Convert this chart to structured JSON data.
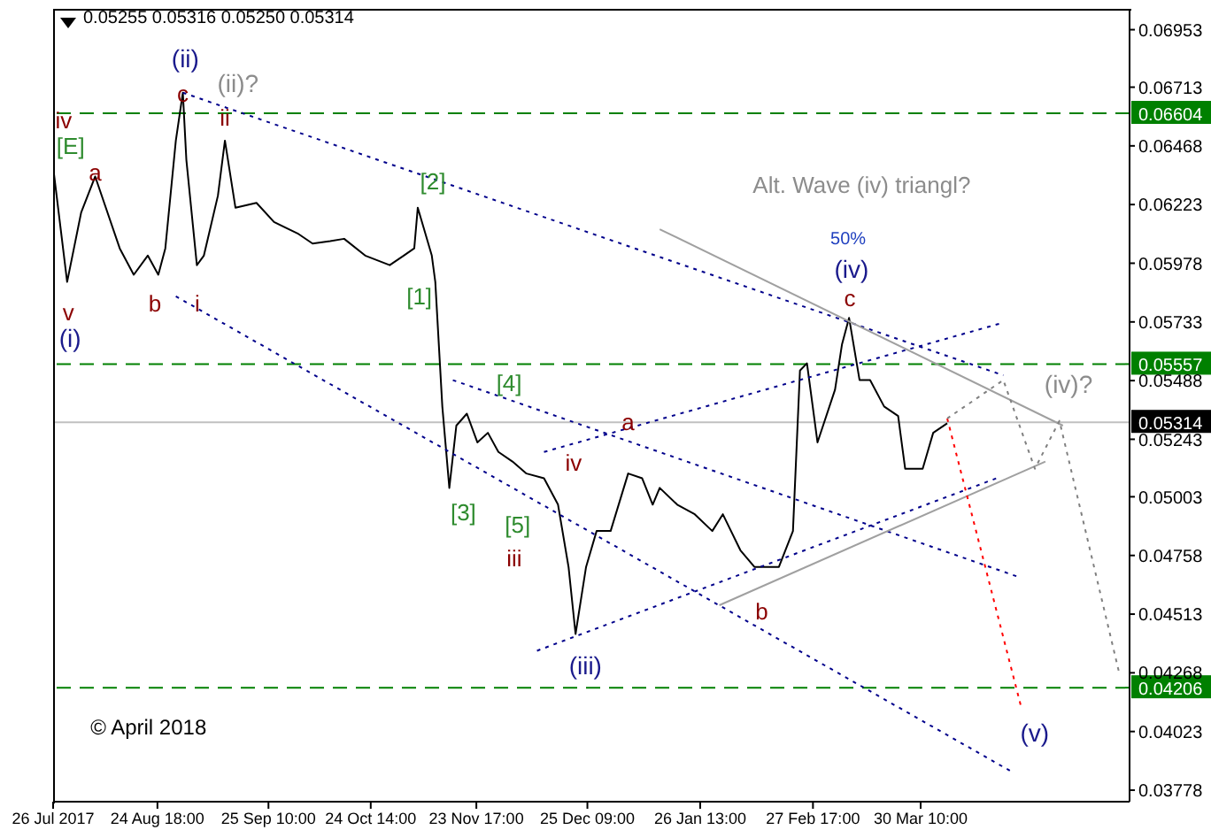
{
  "chart_data": {
    "type": "line",
    "title": "0.05255 0.05316 0.05250 0.05314",
    "marker": "none",
    "line_style": "solid",
    "xlim": [
      "2017-07-26",
      "2018-05-29"
    ],
    "ylim": [
      0.0373,
      0.0704
    ],
    "xticks": [
      {
        "value": "2017-07-26",
        "label": "26 Jul 2017"
      },
      {
        "value": "2017-08-24T18:00",
        "label": "24 Aug 18:00"
      },
      {
        "value": "2017-09-25T10:00",
        "label": "25 Sep 10:00"
      },
      {
        "value": "2017-10-24T14:00",
        "label": "24 Oct 14:00"
      },
      {
        "value": "2017-11-23T17:00",
        "label": "23 Nov 17:00"
      },
      {
        "value": "2017-12-25T09:00",
        "label": "25 Dec 09:00"
      },
      {
        "value": "2018-01-26T13:00",
        "label": "26 Jan 13:00"
      },
      {
        "value": "2018-02-27T17:00",
        "label": "27 Feb 17:00"
      },
      {
        "value": "2018-03-30T10:00",
        "label": "30 Mar 10:00"
      }
    ],
    "yticks": [
      0.06953,
      0.06713,
      0.06468,
      0.06223,
      0.05978,
      0.05733,
      0.05488,
      0.05243,
      0.05003,
      0.04758,
      0.04513,
      0.04268,
      0.04023,
      0.03778
    ],
    "series": [
      {
        "color": "#000000",
        "x": [
          "2017-07-26",
          "2017-07-30",
          "2017-08-03",
          "2017-08-07",
          "2017-08-14",
          "2017-08-18",
          "2017-08-22",
          "2017-08-25",
          "2017-08-27",
          "2017-08-30",
          "2017-09-01",
          "2017-09-02",
          "2017-09-05",
          "2017-09-07",
          "2017-09-11",
          "2017-09-13",
          "2017-09-16",
          "2017-09-22",
          "2017-09-27",
          "2017-10-04",
          "2017-10-08",
          "2017-10-13",
          "2017-10-17",
          "2017-10-23",
          "2017-10-30",
          "2017-11-03",
          "2017-11-06",
          "2017-11-07",
          "2017-11-11",
          "2017-11-12",
          "2017-11-14",
          "2017-11-16",
          "2017-11-18",
          "2017-11-21",
          "2017-11-24",
          "2017-11-27",
          "2017-11-30",
          "2017-12-04",
          "2017-12-08",
          "2017-12-13",
          "2017-12-17",
          "2017-12-20",
          "2017-12-22",
          "2017-12-25",
          "2017-12-28",
          "2018-01-01",
          "2018-01-06",
          "2018-01-10",
          "2018-01-13",
          "2018-01-15",
          "2018-01-20",
          "2018-01-25",
          "2018-01-30",
          "2018-02-02",
          "2018-02-07",
          "2018-02-11",
          "2018-02-18",
          "2018-02-22",
          "2018-02-24",
          "2018-02-26",
          "2018-03-01",
          "2018-03-06",
          "2018-03-08",
          "2018-03-10",
          "2018-03-13",
          "2018-03-16",
          "2018-03-20",
          "2018-03-24",
          "2018-03-26",
          "2018-03-31",
          "2018-04-03",
          "2018-04-07"
        ],
        "values": [
          0.0638,
          0.059,
          0.0619,
          0.0634,
          0.0604,
          0.0593,
          0.0601,
          0.0593,
          0.0604,
          0.0649,
          0.0669,
          0.0641,
          0.0597,
          0.0601,
          0.0626,
          0.0649,
          0.0621,
          0.0623,
          0.0615,
          0.061,
          0.0606,
          0.0607,
          0.0608,
          0.0601,
          0.0597,
          0.0601,
          0.0604,
          0.0621,
          0.0601,
          0.059,
          0.0538,
          0.0504,
          0.053,
          0.0535,
          0.0523,
          0.0527,
          0.0519,
          0.0515,
          0.051,
          0.0508,
          0.0497,
          0.0471,
          0.0443,
          0.0471,
          0.0486,
          0.0486,
          0.051,
          0.0508,
          0.0497,
          0.0504,
          0.0497,
          0.0493,
          0.0486,
          0.0493,
          0.0478,
          0.0471,
          0.0471,
          0.0486,
          0.0553,
          0.0556,
          0.0523,
          0.0545,
          0.0564,
          0.0575,
          0.0549,
          0.0549,
          0.0538,
          0.0534,
          0.0512,
          0.0512,
          0.0527,
          0.0531
        ]
      },
      {
        "color": "#00008b",
        "line_style": "dotted",
        "x": [
          "2017-09-01",
          "2018-04-23"
        ],
        "values": [
          0.0669,
          0.0551
        ]
      },
      {
        "color": "#00008b",
        "line_style": "dotted",
        "x": [
          "2017-08-30",
          "2018-04-26"
        ],
        "values": [
          0.0584,
          0.0385
        ]
      },
      {
        "color": "#00008b",
        "line_style": "dotted",
        "x": [
          "2017-11-17",
          "2018-04-27"
        ],
        "values": [
          0.0549,
          0.0467
        ]
      },
      {
        "color": "#00008b",
        "line_style": "dotted",
        "x": [
          "2017-12-11",
          "2018-04-21"
        ],
        "values": [
          0.0436,
          0.0508
        ]
      },
      {
        "color": "#00008b",
        "line_style": "dotted",
        "x": [
          "2017-12-13",
          "2018-04-23"
        ],
        "values": [
          0.0519,
          0.0573
        ]
      },
      {
        "color": "#a0a0a0",
        "line_style": "solid",
        "x": [
          "2018-01-15",
          "2018-05-10"
        ],
        "values": [
          0.0612,
          0.053
        ]
      },
      {
        "color": "#a0a0a0",
        "line_style": "solid",
        "x": [
          "2018-02-01",
          "2018-05-05"
        ],
        "values": [
          0.0455,
          0.0515
        ]
      },
      {
        "color": "#ff0000",
        "line_style": "dotted",
        "x": [
          "2018-04-07",
          "2018-04-28"
        ],
        "values": [
          0.0533,
          0.0413
        ]
      },
      {
        "color": "#808080",
        "line_style": "dotted",
        "x": [
          "2018-04-07",
          "2018-04-23",
          "2018-05-02",
          "2018-05-09",
          "2018-05-26"
        ],
        "values": [
          0.0533,
          0.0549,
          0.0512,
          0.0532,
          0.0427
        ]
      }
    ],
    "ref_lines": [
      {
        "axis": "y",
        "value": 0.06604,
        "label": "0.06604",
        "color": "#008000",
        "line_style": "dashed"
      },
      {
        "axis": "y",
        "value": 0.05557,
        "label": "0.05557",
        "color": "#008000",
        "line_style": "dashed"
      },
      {
        "axis": "y",
        "value": 0.04206,
        "label": "0.04206",
        "color": "#008000",
        "line_style": "dashed"
      },
      {
        "axis": "y",
        "value": 0.05314,
        "label": "0.05314",
        "color": "#c0c0c0",
        "line_style": "solid"
      }
    ],
    "annotations": [
      "(ii)",
      {
        "text": "c",
        "x": "2017-09-01",
        "y": 0.0669
      },
      "(ii)?",
      {
        "text": "ii",
        "x": "2017-09-13",
        "y": 0.0659
      },
      {
        "text": "iv",
        "x": "2017-07-29",
        "y": 0.0658
      },
      "[E]",
      {
        "text": "a",
        "x": "2017-08-07",
        "y": 0.0636
      },
      "v",
      "(i)",
      "b",
      "i",
      "[2]",
      "[1]",
      "[4]",
      "[3]",
      "[5]",
      "iii",
      "iv",
      "(iii)",
      {
        "text": "a",
        "x": "2018-01-06",
        "y": 0.0532
      },
      "b",
      "c",
      "(iv)",
      "50%",
      "Alt. Wave (iv) triangl?",
      "(iv)?",
      "(v)",
      "© April 2018"
    ]
  }
}
